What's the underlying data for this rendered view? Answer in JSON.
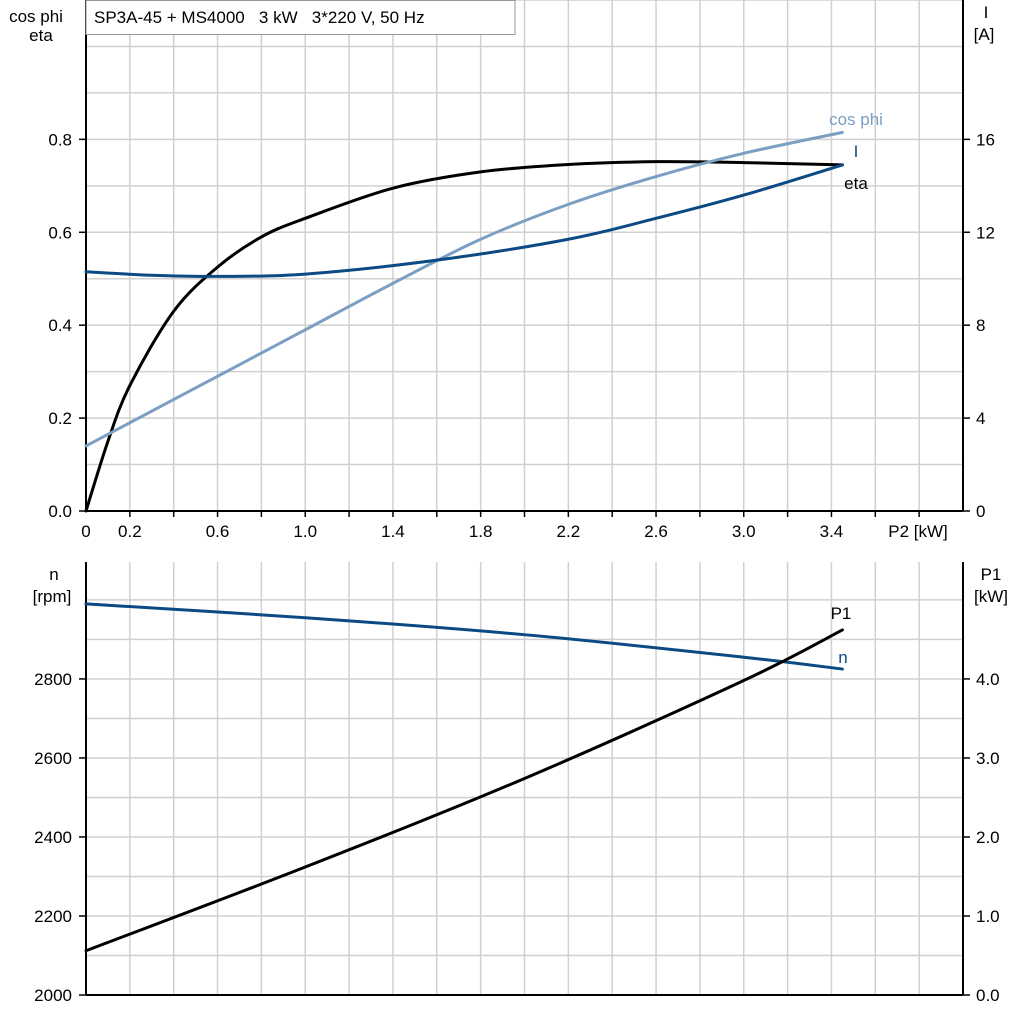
{
  "colors": {
    "eta": "#000000",
    "cos_phi": "#7b9fc2",
    "current": "#0b4a82",
    "n": "#0b4a82",
    "p1": "#000000",
    "grid": "#d0d0d0"
  },
  "chart_data": [
    {
      "type": "line",
      "title": "SP3A-45 + MS4000   3 kW   3*220 V, 50 Hz",
      "xlabel": "P2 [kW]",
      "ylabel_left": [
        "cos phi",
        "eta"
      ],
      "ylabel_right": [
        "I",
        "[A]"
      ],
      "xlim": [
        0,
        4.0
      ],
      "ylim_left": [
        0,
        1.1
      ],
      "ylim_right": [
        0,
        22
      ],
      "x_ticks": [
        "0",
        "0.2",
        "0.6",
        "1.0",
        "1.4",
        "1.8",
        "2.2",
        "2.6",
        "3.0",
        "3.4"
      ],
      "x_tick_values": [
        0,
        0.2,
        0.6,
        1.0,
        1.4,
        1.8,
        2.2,
        2.6,
        3.0,
        3.4
      ],
      "y_left_ticks": [
        "0.0",
        "0.2",
        "0.4",
        "0.6",
        "0.8"
      ],
      "y_right_ticks": [
        "0",
        "4",
        "8",
        "12",
        "16"
      ],
      "grid": true,
      "series": [
        {
          "name": "eta",
          "axis": "left",
          "x": [
            0,
            0.1,
            0.2,
            0.4,
            0.6,
            0.8,
            1.0,
            1.4,
            1.8,
            2.2,
            2.6,
            3.0,
            3.45
          ],
          "y": [
            0,
            0.15,
            0.27,
            0.43,
            0.525,
            0.59,
            0.63,
            0.695,
            0.73,
            0.746,
            0.752,
            0.75,
            0.745
          ]
        },
        {
          "name": "cos phi",
          "axis": "left",
          "x": [
            0,
            0.6,
            1.0,
            1.4,
            1.8,
            2.2,
            2.6,
            3.0,
            3.45
          ],
          "y": [
            0.14,
            0.29,
            0.39,
            0.49,
            0.585,
            0.66,
            0.72,
            0.77,
            0.815
          ]
        },
        {
          "name": "I",
          "axis": "right",
          "x": [
            0,
            0.3,
            0.6,
            1.0,
            1.6,
            2.2,
            2.6,
            3.0,
            3.45
          ],
          "y": [
            10.3,
            10.15,
            10.1,
            10.2,
            10.8,
            11.7,
            12.6,
            13.6,
            14.9
          ]
        }
      ]
    },
    {
      "type": "line",
      "xlim": [
        0,
        4.0
      ],
      "ylabel_left": [
        "n",
        "[rpm]"
      ],
      "ylabel_right": [
        "P1",
        "[kW]"
      ],
      "ylim_left": [
        2000,
        3096
      ],
      "ylim_right": [
        0,
        5.48
      ],
      "y_left_ticks": [
        "2000",
        "2200",
        "2400",
        "2600",
        "2800"
      ],
      "y_right_ticks": [
        "0.0",
        "1.0",
        "2.0",
        "3.0",
        "4.0"
      ],
      "grid": true,
      "series": [
        {
          "name": "n",
          "axis": "left",
          "x": [
            0,
            1.0,
            2.0,
            3.0,
            3.45
          ],
          "y": [
            2990,
            2955,
            2912,
            2855,
            2825
          ]
        },
        {
          "name": "P1",
          "axis": "right",
          "x": [
            0,
            1.0,
            2.0,
            3.0,
            3.45
          ],
          "y": [
            0.56,
            1.62,
            2.74,
            3.98,
            4.62
          ]
        }
      ]
    }
  ]
}
